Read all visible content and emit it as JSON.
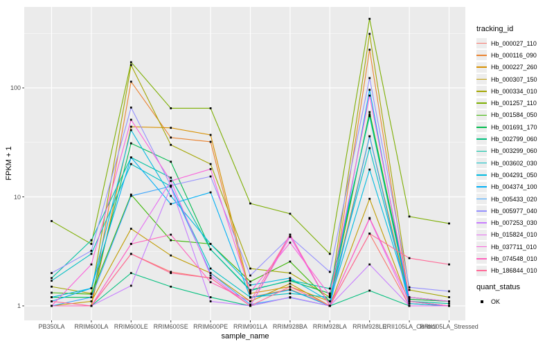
{
  "chart_data": {
    "type": "line",
    "title": "",
    "xlabel": "sample_name",
    "ylabel": "FPKM + 1",
    "y_scale": "log10",
    "y_ticks": [
      1,
      10,
      100
    ],
    "y_tick_labels": [
      "1",
      "10",
      "100"
    ],
    "ylim": [
      0.9,
      500
    ],
    "grid": true,
    "legend_position": "right",
    "legend_title": "tracking_id",
    "quant_legend_title": "quant_status",
    "quant_status_label": "OK",
    "panel_background": "#EBEBEB",
    "gridline_color": "#FFFFFF",
    "axis_text_color": "#4D4D4D",
    "tick_color": "#333333",
    "marker": "black-square",
    "marker_color": "#000000",
    "categories": [
      "PB350LA",
      "RRIM600LA",
      "RRIM600LE",
      "RRIM600SE",
      "RRIM600PE",
      "RRIM901LA",
      "RRIM928BA",
      "RRIM928LA",
      "RRIM928LE",
      "RRII105LA_Control",
      "RRII105LA_Stressed"
    ],
    "series": [
      {
        "name": "Hb_000027_110",
        "color": "#F8766D",
        "values": [
          1.0,
          1.0,
          3.0,
          2.05,
          1.8,
          1.0,
          4.5,
          1.0,
          4.6,
          1.0,
          1.0
        ]
      },
      {
        "name": "Hb_000116_090",
        "color": "#EA8331",
        "values": [
          1.0,
          1.0,
          114,
          35,
          32,
          1.2,
          1.42,
          1.0,
          224,
          1.15,
          1.1
        ]
      },
      {
        "name": "Hb_000227_260",
        "color": "#D89000",
        "values": [
          1.0,
          1.0,
          44,
          43,
          37,
          1.3,
          1.5,
          1.1,
          36,
          1.1,
          1.0
        ]
      },
      {
        "name": "Hb_000307_150",
        "color": "#C09B00",
        "values": [
          1.0,
          1.1,
          5.1,
          2.9,
          2.0,
          1.1,
          1.6,
          1.0,
          9.6,
          1.05,
          1.0
        ]
      },
      {
        "name": "Hb_000334_010",
        "color": "#A3A500",
        "values": [
          1.5,
          1.3,
          162,
          30,
          20,
          2.2,
          2.0,
          1.2,
          313,
          1.4,
          1.2
        ]
      },
      {
        "name": "Hb_001257_110",
        "color": "#7CAE00",
        "values": [
          6.0,
          3.7,
          172,
          65,
          65,
          8.7,
          7.0,
          3.0,
          430,
          6.6,
          5.7
        ]
      },
      {
        "name": "Hb_001584_050",
        "color": "#39B600",
        "values": [
          1.32,
          1.28,
          10.5,
          4.0,
          3.7,
          1.67,
          2.55,
          1.1,
          60,
          1.2,
          1.1
        ]
      },
      {
        "name": "Hb_001691_170",
        "color": "#00BB4E",
        "values": [
          1.2,
          1.2,
          31,
          21,
          3.3,
          1.4,
          1.7,
          1.3,
          57,
          1.15,
          1.1
        ]
      },
      {
        "name": "Hb_002799_060",
        "color": "#00BF7D",
        "values": [
          1.0,
          1.0,
          2.0,
          1.5,
          1.2,
          1.0,
          1.2,
          1.0,
          1.38,
          1.0,
          1.0
        ]
      },
      {
        "name": "Hb_003299_060",
        "color": "#00C1A3",
        "values": [
          1.8,
          4.0,
          23,
          15,
          3.3,
          1.38,
          1.72,
          1.44,
          55,
          1.1,
          1.05
        ]
      },
      {
        "name": "Hb_003602_030",
        "color": "#00BFC4",
        "values": [
          1.7,
          3.0,
          20,
          12.5,
          2.2,
          1.2,
          1.3,
          1.2,
          28,
          1.1,
          1.0
        ]
      },
      {
        "name": "Hb_004291_050",
        "color": "#00BAE0",
        "values": [
          1.2,
          1.45,
          41,
          10.2,
          3.7,
          1.55,
          1.8,
          1.1,
          17.8,
          1.2,
          1.1
        ]
      },
      {
        "name": "Hb_004374_100",
        "color": "#00B0F6",
        "values": [
          1.1,
          1.45,
          23,
          8.6,
          11,
          1.19,
          1.4,
          1.0,
          96,
          1.05,
          1.0
        ]
      },
      {
        "name": "Hb_005433_020",
        "color": "#35A2FF",
        "values": [
          1.0,
          1.2,
          10.2,
          12.5,
          2.0,
          1.03,
          1.19,
          1.0,
          36,
          1.0,
          1.0
        ]
      },
      {
        "name": "Hb_005977_040",
        "color": "#9590FF",
        "values": [
          2.0,
          3.2,
          66,
          12.7,
          15.4,
          1.9,
          4.3,
          2.05,
          123,
          1.48,
          1.36
        ]
      },
      {
        "name": "Hb_007253_030",
        "color": "#C77CFF",
        "values": [
          1.0,
          1.0,
          1.53,
          12.4,
          1.1,
          1.0,
          1.2,
          1.0,
          2.4,
          1.0,
          1.0
        ]
      },
      {
        "name": "Hb_015824_010",
        "color": "#E76BF3",
        "values": [
          1.0,
          1.0,
          3.7,
          14,
          1.9,
          1.0,
          4.3,
          1.0,
          6.3,
          1.0,
          1.0
        ]
      },
      {
        "name": "Hb_037711_010",
        "color": "#FA62DB",
        "values": [
          1.0,
          2.4,
          51,
          14,
          18,
          1.34,
          3.8,
          1.25,
          85,
          1.2,
          1.1
        ]
      },
      {
        "name": "Hb_074548_010",
        "color": "#FF62BC",
        "values": [
          1.0,
          1.0,
          3.7,
          4.5,
          1.65,
          1.1,
          4.5,
          1.0,
          6.4,
          1.1,
          1.0
        ]
      },
      {
        "name": "Hb_186844_010",
        "color": "#FF6A98",
        "values": [
          1.1,
          1.0,
          3.0,
          2.0,
          1.8,
          1.0,
          1.5,
          1.0,
          4.6,
          2.74,
          2.4
        ]
      }
    ]
  }
}
